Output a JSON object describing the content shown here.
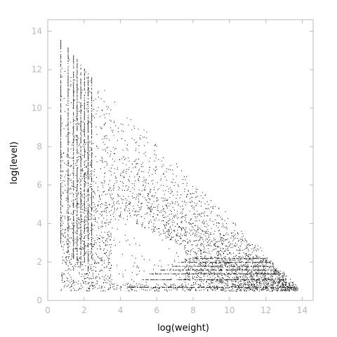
{
  "chart_data": {
    "type": "scatter",
    "xlabel": "log(weight)",
    "ylabel": "log(level)",
    "xlim": [
      0,
      14.6
    ],
    "ylim": [
      0,
      14.6
    ],
    "xticks": [
      "0",
      "2",
      "4",
      "6",
      "8",
      "10",
      "12",
      "14"
    ],
    "yticks": [
      "0",
      "2",
      "4",
      "6",
      "8",
      "10",
      "12",
      "14"
    ],
    "grid": false,
    "axis_color": "#b8b8b8",
    "point_color": "#000000",
    "region": {
      "description": "dense cloud of tiny points bounded above by the line level + weight ≈ 14.3",
      "boundary_top_left": [
        0.7,
        13.6
      ],
      "boundary_bottom_right": [
        13.8,
        0.7
      ]
    },
    "columns": [
      {
        "x": 0.7,
        "y_min": 3.0,
        "y_max": 13.6
      },
      {
        "x": 1.1,
        "y_min": 2.5,
        "y_max": 13.2
      },
      {
        "x": 1.4,
        "y_min": 2.2,
        "y_max": 12.8
      },
      {
        "x": 1.6,
        "y_min": 2.0,
        "y_max": 12.6
      },
      {
        "x": 1.8,
        "y_min": 1.8,
        "y_max": 12.3
      },
      {
        "x": 2.0,
        "y_min": 2.0,
        "y_max": 12.1
      },
      {
        "x": 2.2,
        "y_min": 1.5,
        "y_max": 11.9
      },
      {
        "x": 2.4,
        "y_min": 2.2,
        "y_max": 11.7
      }
    ],
    "rows": [
      {
        "y": 0.7,
        "x_min": 4.5,
        "x_max": 13.7
      },
      {
        "y": 1.1,
        "x_min": 5.2,
        "x_max": 13.1
      },
      {
        "y": 1.4,
        "x_min": 5.6,
        "x_max": 12.8
      },
      {
        "y": 1.6,
        "x_min": 6.2,
        "x_max": 12.6
      },
      {
        "y": 1.8,
        "x_min": 6.8,
        "x_max": 12.4
      },
      {
        "y": 2.0,
        "x_min": 7.2,
        "x_max": 12.2
      },
      {
        "y": 2.2,
        "x_min": 7.8,
        "x_max": 12.0
      }
    ],
    "outliers": [
      [
        3.1,
        0.7
      ],
      [
        3.5,
        1.1
      ],
      [
        3.9,
        1.4
      ],
      [
        4.6,
        1.1
      ],
      [
        2.0,
        1.4
      ],
      [
        1.5,
        1.9
      ]
    ]
  }
}
